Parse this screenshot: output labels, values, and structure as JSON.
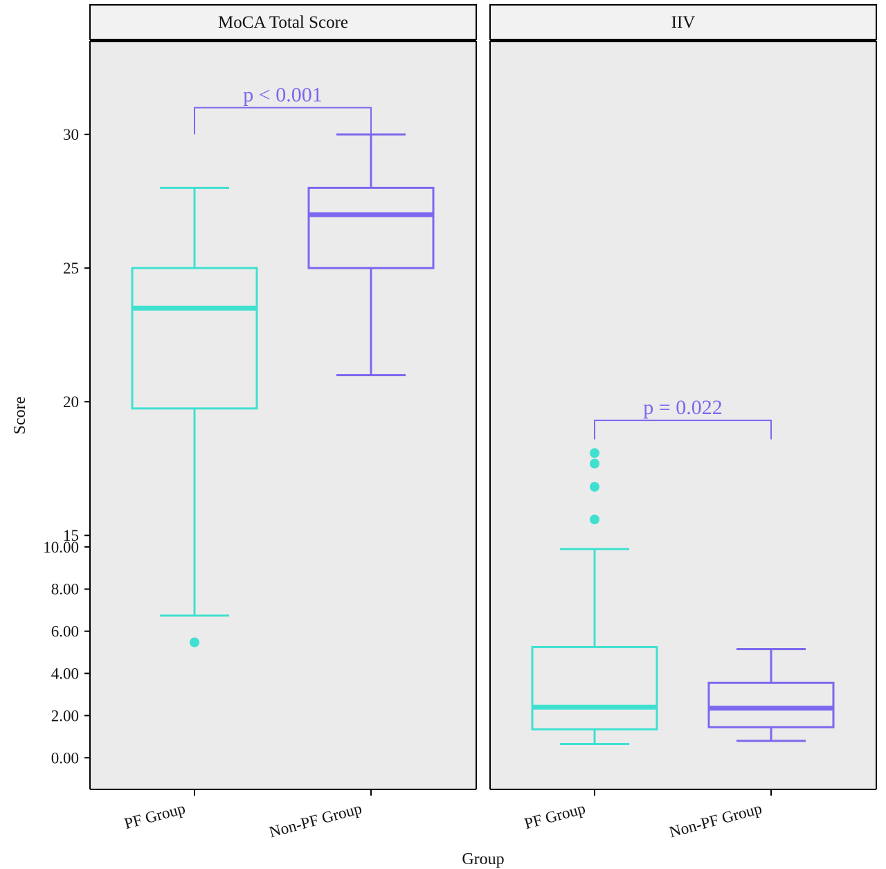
{
  "chart_data": {
    "type": "box",
    "xlabel": "Group",
    "ylabel": "Score",
    "colors": {
      "pf": "#40E0D0",
      "nonpf": "#7B68EE",
      "panel_bg": "#EBEBEB",
      "strip_bg": "#F2F2F2"
    },
    "panels": [
      {
        "title": "MoCA Total Score",
        "y_ticks_shown": [
          "30",
          "25",
          "20",
          "15"
        ],
        "ylim": [
          5.5,
          33.5
        ],
        "categories": [
          "PF Group",
          "Non-PF Group"
        ],
        "boxes": [
          {
            "group": "PF Group",
            "min": 12,
            "q1": 19.75,
            "median": 23.5,
            "q3": 25,
            "max": 28,
            "outliers": [
              11
            ]
          },
          {
            "group": "Non-PF Group",
            "min": 21,
            "q1": 25,
            "median": 27,
            "q3": 28,
            "max": 30,
            "outliers": []
          }
        ],
        "comparison": {
          "label": "p < 0.001",
          "y": 31.0,
          "drop_left": 30.0,
          "drop_right": 30.0
        }
      },
      {
        "title": "IIV",
        "y_ticks_shown": [
          "10.00",
          "8.00",
          "6.00",
          "4.00",
          "2.00",
          "0.00"
        ],
        "ylim": [
          -1.5,
          34.0
        ],
        "categories": [
          "PF Group",
          "Non-PF Group"
        ],
        "boxes": [
          {
            "group": "PF Group",
            "min": 0.65,
            "q1": 1.35,
            "median": 2.4,
            "q3": 5.25,
            "max": 9.9,
            "outliers": [
              11.3,
              12.85,
              13.95,
              14.45
            ]
          },
          {
            "group": "Non-PF Group",
            "min": 0.8,
            "q1": 1.45,
            "median": 2.35,
            "q3": 3.55,
            "max": 5.15,
            "outliers": []
          }
        ],
        "comparison": {
          "label": "p = 0.022",
          "y": 16.0,
          "drop_left": 15.1,
          "drop_right": 15.1
        }
      }
    ]
  }
}
